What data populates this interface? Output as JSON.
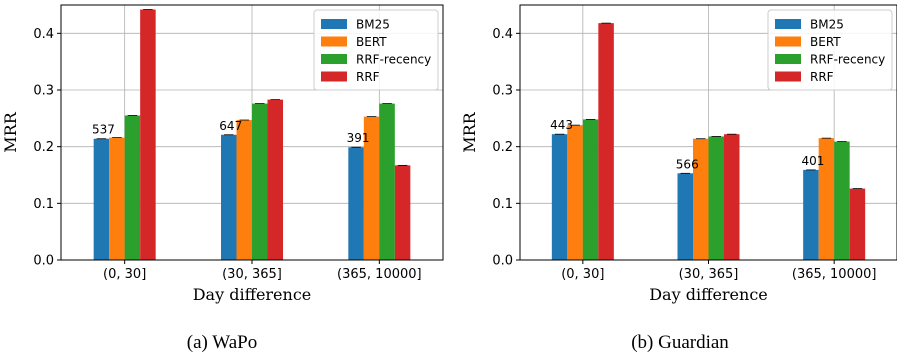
{
  "chart_data": [
    {
      "type": "bar",
      "caption": "(a) WaPo",
      "xlabel": "Day difference",
      "ylabel": "MRR",
      "ylim": [
        0,
        0.45
      ],
      "yticks": [
        "0.0",
        "0.1",
        "0.2",
        "0.3",
        "0.4"
      ],
      "grid": true,
      "legend_position": "top-right",
      "categories": [
        "(0, 30]",
        "(30, 365]",
        "(365, 10000]"
      ],
      "counts": [
        "537",
        "647",
        "391"
      ],
      "series": [
        {
          "name": "BM25",
          "color": "#1f77b4",
          "values": [
            0.214,
            0.221,
            0.199
          ]
        },
        {
          "name": "BERT",
          "color": "#ff7f0e",
          "values": [
            0.216,
            0.247,
            0.253
          ]
        },
        {
          "name": "RRF-recency",
          "color": "#2ca02c",
          "values": [
            0.255,
            0.276,
            0.276
          ]
        },
        {
          "name": "RRF",
          "color": "#d62728",
          "values": [
            0.442,
            0.283,
            0.167
          ]
        }
      ]
    },
    {
      "type": "bar",
      "caption": "(b) Guardian",
      "xlabel": "Day difference",
      "ylabel": "MRR",
      "ylim": [
        0,
        0.45
      ],
      "yticks": [
        "0.0",
        "0.1",
        "0.2",
        "0.3",
        "0.4"
      ],
      "grid": true,
      "legend_position": "top-right",
      "categories": [
        "(0, 30]",
        "(30, 365]",
        "(365, 10000]"
      ],
      "counts": [
        "443",
        "566",
        "401"
      ],
      "series": [
        {
          "name": "BM25",
          "color": "#1f77b4",
          "values": [
            0.222,
            0.153,
            0.159
          ]
        },
        {
          "name": "BERT",
          "color": "#ff7f0e",
          "values": [
            0.238,
            0.214,
            0.215
          ]
        },
        {
          "name": "RRF-recency",
          "color": "#2ca02c",
          "values": [
            0.248,
            0.218,
            0.209
          ]
        },
        {
          "name": "RRF",
          "color": "#d62728",
          "values": [
            0.418,
            0.222,
            0.126
          ]
        }
      ]
    }
  ]
}
